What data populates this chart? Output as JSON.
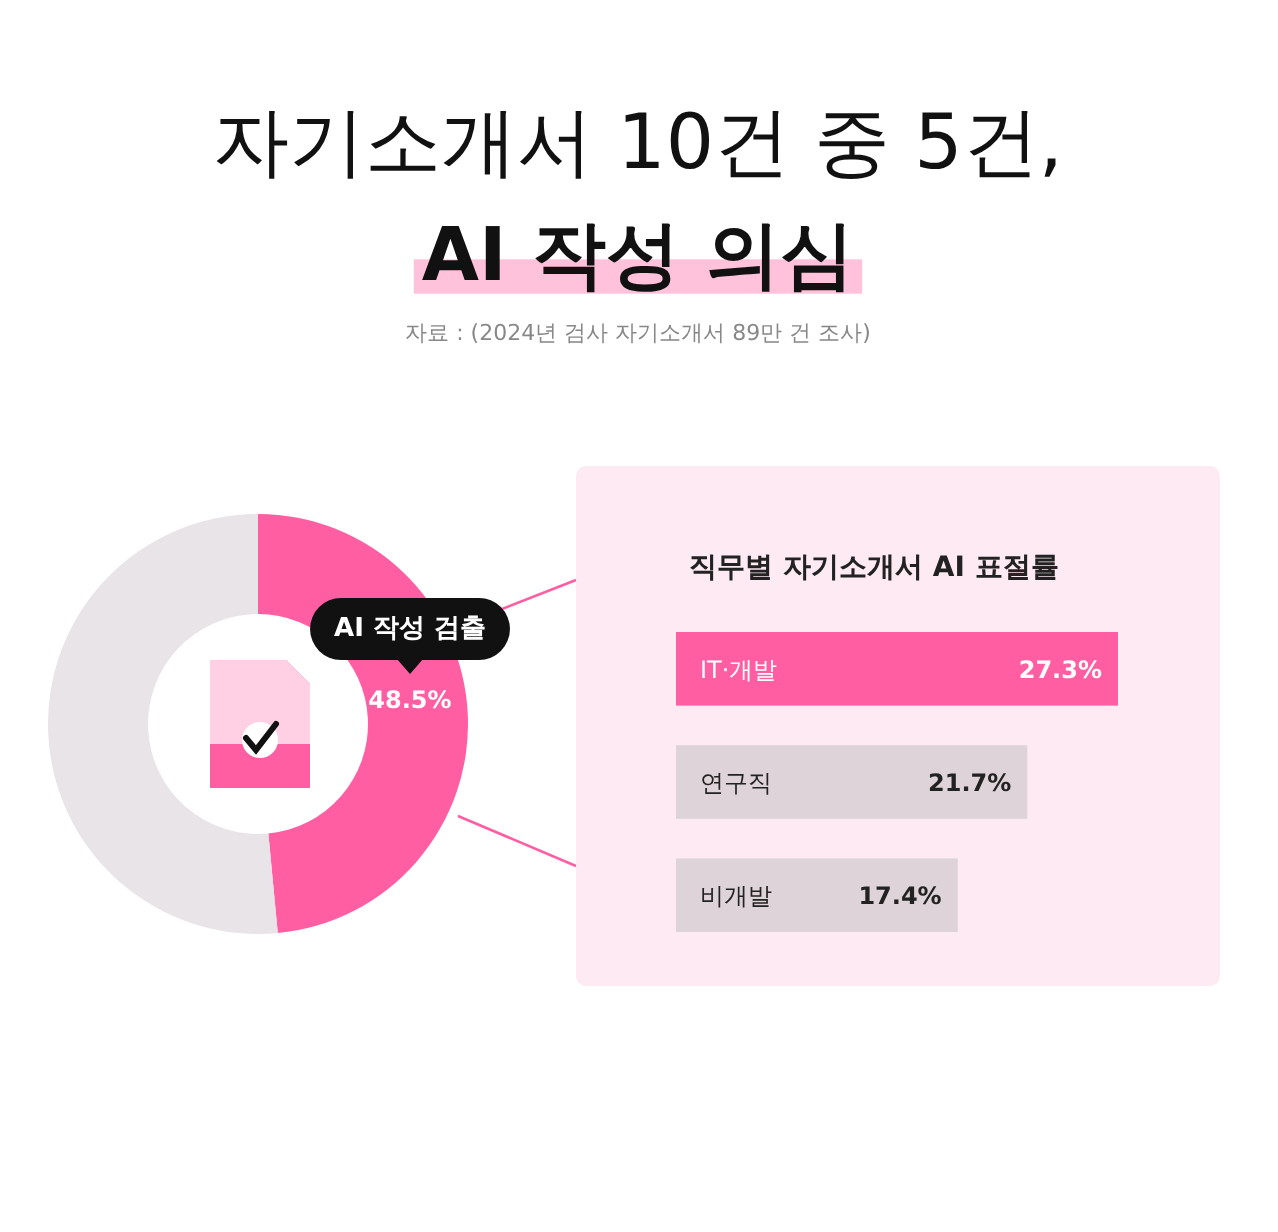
{
  "chart_data": [
    {
      "type": "donut",
      "title": "자기소개서 10건 중 5건,",
      "subtitle": "AI 작성 의심",
      "annotations": [
        "자료 : (2024년 검사 자기소개서 89만 건 조사)"
      ],
      "categories": [
        "AI 작성 검출",
        null
      ],
      "values": [
        48.5,
        51.5
      ],
      "colors": [
        "#ff5fa2",
        "#e9e4e7"
      ],
      "value_labels": [
        "48.5%",
        null
      ]
    },
    {
      "type": "bar",
      "title": "직무별 자기소개서 AI 표절률",
      "orientation": "horizontal",
      "categories": [
        "IT·개발",
        "연구직",
        "비개발"
      ],
      "values": [
        27.3,
        21.7,
        17.4
      ],
      "colors": [
        "#ff5fa2",
        "#ddd3d8",
        "#ddd3d8"
      ],
      "value_labels": [
        "27.3%",
        "21.7%",
        "17.4%"
      ]
    }
  ]
}
